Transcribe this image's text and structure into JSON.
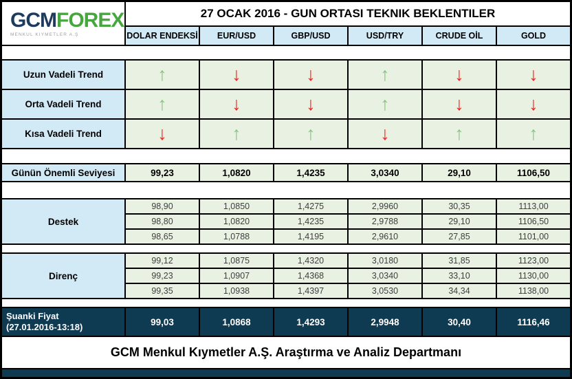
{
  "logo": {
    "gcm": "GCM",
    "forex": "FOREX",
    "subtitle": "MENKUL KIYMETLER A.Ş"
  },
  "title": "27 OCAK 2016 - GUN ORTASI TEKNIK BEKLENTILER",
  "columns": [
    "DOLAR ENDEKSİ",
    "EUR/USD",
    "GBP/USD",
    "USD/TRY",
    "CRUDE OİL",
    "GOLD"
  ],
  "trend_rows": [
    {
      "label": "Uzun Vadeli Trend",
      "arrows": [
        "up",
        "down",
        "down",
        "up",
        "down",
        "down"
      ]
    },
    {
      "label": "Orta Vadeli Trend",
      "arrows": [
        "up",
        "down",
        "down",
        "up",
        "down",
        "down"
      ]
    },
    {
      "label": "Kısa Vadeli Trend",
      "arrows": [
        "down",
        "up",
        "up",
        "down",
        "up",
        "up"
      ]
    }
  ],
  "key_level": {
    "label": "Günün Önemli Seviyesi",
    "values": [
      "99,23",
      "1,0820",
      "1,4235",
      "3,0340",
      "29,10",
      "1106,50"
    ]
  },
  "support": {
    "label": "Destek",
    "rows": [
      [
        "98,90",
        "1,0850",
        "1,4275",
        "2,9960",
        "30,35",
        "1113,00"
      ],
      [
        "98,80",
        "1,0820",
        "1,4235",
        "2,9788",
        "29,10",
        "1106,50"
      ],
      [
        "98,65",
        "1,0788",
        "1,4195",
        "2,9610",
        "27,85",
        "1101,00"
      ]
    ]
  },
  "resistance": {
    "label": "Direnç",
    "rows": [
      [
        "99,12",
        "1,0875",
        "1,4320",
        "3,0180",
        "31,85",
        "1123,00"
      ],
      [
        "99,23",
        "1,0907",
        "1,4368",
        "3,0340",
        "33,10",
        "1130,00"
      ],
      [
        "99,35",
        "1,0938",
        "1,4397",
        "3,0530",
        "34,34",
        "1138,00"
      ]
    ]
  },
  "current": {
    "label_line1": "Şuanki Fiyat",
    "label_line2": "(27.01.2016-13:18)",
    "values": [
      "99,03",
      "1,0868",
      "1,4293",
      "2,9948",
      "30,40",
      "1116,46"
    ]
  },
  "footer": "GCM Menkul Kıymetler A.Ş. Araştırma ve Analiz Departmanı",
  "colors": {
    "header_blue": "#d2e9f6",
    "cell_green": "#e9f1e2",
    "navy": "#0e3a52",
    "arrow_up": "#85c57e",
    "arrow_down": "#fb1f1f",
    "logo_navy": "#1d3b5e",
    "logo_green": "#46a73f"
  }
}
